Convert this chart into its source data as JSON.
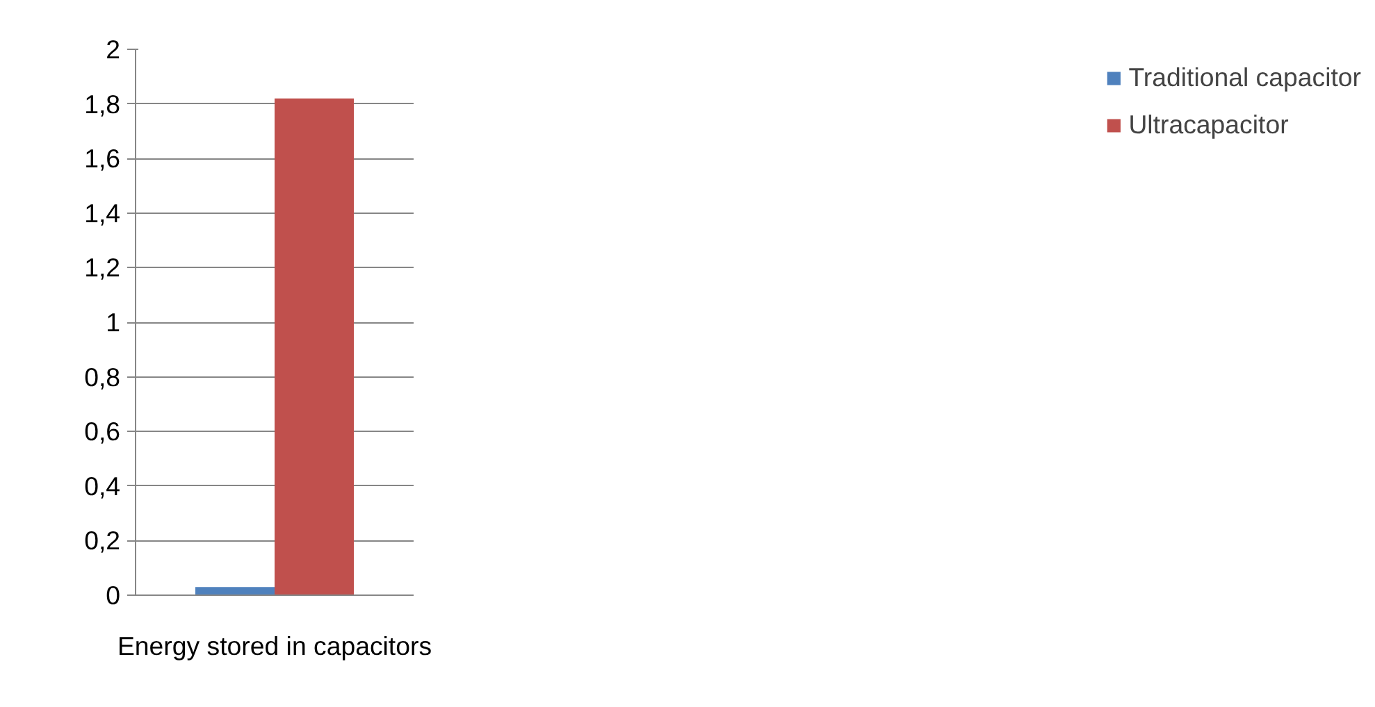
{
  "chart_data": {
    "type": "bar",
    "categories": [
      "Energy stored in capacitors"
    ],
    "series": [
      {
        "name": "Traditional capacitor",
        "color": "#4f81bd",
        "values": [
          0.03
        ]
      },
      {
        "name": "Ultracapacitor",
        "color": "#c0504d",
        "values": [
          1.82
        ]
      }
    ],
    "ylim": [
      0,
      2
    ],
    "yticks": [
      0,
      {
        "value": 0.2,
        "label": "0,2"
      },
      {
        "value": 0.4,
        "label": "0,4"
      },
      {
        "value": 0.6,
        "label": "0,6"
      },
      {
        "value": 0.8,
        "label": "0,8"
      },
      1,
      {
        "value": 1.2,
        "label": "1,2"
      },
      {
        "value": 1.4,
        "label": "1,4"
      },
      {
        "value": 1.6,
        "label": "1,6"
      },
      {
        "value": 1.8,
        "label": "1,8"
      },
      2
    ],
    "grid": "y",
    "legend": "right"
  }
}
